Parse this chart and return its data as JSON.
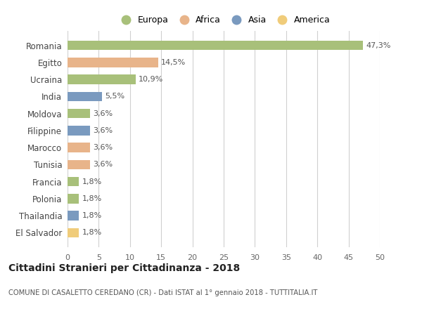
{
  "countries": [
    "Romania",
    "Egitto",
    "Ucraina",
    "India",
    "Moldova",
    "Filippine",
    "Marocco",
    "Tunisia",
    "Francia",
    "Polonia",
    "Thailandia",
    "El Salvador"
  ],
  "values": [
    47.3,
    14.5,
    10.9,
    5.5,
    3.6,
    3.6,
    3.6,
    3.6,
    1.8,
    1.8,
    1.8,
    1.8
  ],
  "labels": [
    "47,3%",
    "14,5%",
    "10,9%",
    "5,5%",
    "3,6%",
    "3,6%",
    "3,6%",
    "3,6%",
    "1,8%",
    "1,8%",
    "1,8%",
    "1,8%"
  ],
  "continents": [
    "Europa",
    "Africa",
    "Europa",
    "Asia",
    "Europa",
    "Asia",
    "Africa",
    "Africa",
    "Europa",
    "Europa",
    "Asia",
    "America"
  ],
  "colors": {
    "Europa": "#a8c07a",
    "Africa": "#e8b48a",
    "Asia": "#7a9abf",
    "America": "#f0cc7a"
  },
  "legend_order": [
    "Europa",
    "Africa",
    "Asia",
    "America"
  ],
  "title": "Cittadini Stranieri per Cittadinanza - 2018",
  "subtitle": "COMUNE DI CASALETTO CEREDANO (CR) - Dati ISTAT al 1° gennaio 2018 - TUTTITALIA.IT",
  "xlim": [
    0,
    50
  ],
  "xticks": [
    0,
    5,
    10,
    15,
    20,
    25,
    30,
    35,
    40,
    45,
    50
  ],
  "background_color": "#ffffff",
  "grid_color": "#d0d0d0"
}
